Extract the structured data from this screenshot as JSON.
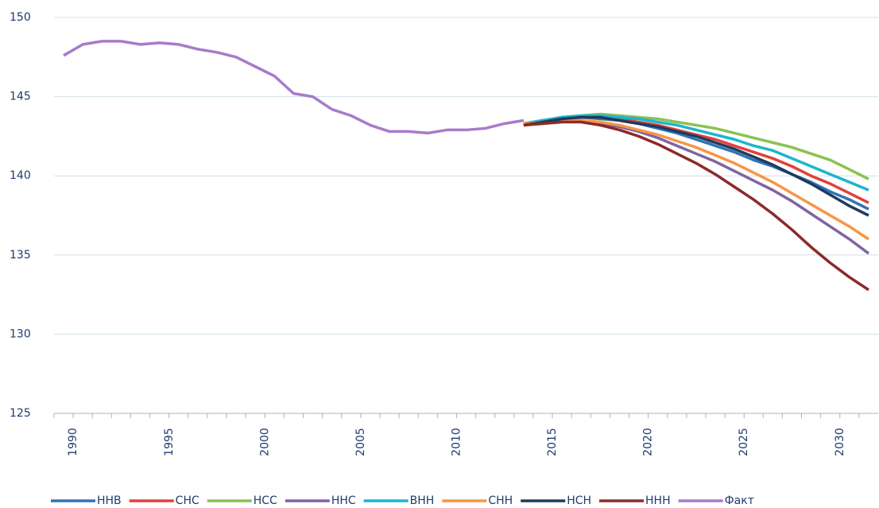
{
  "chart_data": {
    "type": "line",
    "x": [
      1989,
      1990,
      1991,
      1992,
      1993,
      1994,
      1995,
      1996,
      1997,
      1998,
      1999,
      2000,
      2001,
      2002,
      2003,
      2004,
      2005,
      2006,
      2007,
      2008,
      2009,
      2010,
      2011,
      2012,
      2013,
      2014,
      2015,
      2016,
      2017,
      2018,
      2019,
      2020,
      2021,
      2022,
      2023,
      2024,
      2025,
      2026,
      2027,
      2028,
      2029,
      2030,
      2031
    ],
    "xlim": [
      1988.5,
      2031.5
    ],
    "xticks": [
      1990,
      1995,
      2000,
      2005,
      2010,
      2015,
      2020,
      2025,
      2030
    ],
    "ylim": [
      125,
      150
    ],
    "yticks": [
      125,
      130,
      135,
      140,
      145,
      150
    ],
    "grid": true,
    "legend": "bottom",
    "series": [
      {
        "name": "ННВ",
        "color": "#2e75b6",
        "values": [
          null,
          null,
          null,
          null,
          null,
          null,
          null,
          null,
          null,
          null,
          null,
          null,
          null,
          null,
          null,
          null,
          null,
          null,
          null,
          null,
          null,
          null,
          null,
          null,
          143.3,
          143.5,
          143.6,
          143.7,
          143.6,
          143.5,
          143.3,
          143.0,
          142.7,
          142.3,
          141.9,
          141.5,
          141.0,
          140.6,
          140.1,
          139.6,
          139.0,
          138.5,
          137.9
        ]
      },
      {
        "name": "СНС",
        "color": "#e0413a",
        "values": [
          null,
          null,
          null,
          null,
          null,
          null,
          null,
          null,
          null,
          null,
          null,
          null,
          null,
          null,
          null,
          null,
          null,
          null,
          null,
          null,
          null,
          null,
          null,
          null,
          143.3,
          143.5,
          143.6,
          143.7,
          143.7,
          143.6,
          143.4,
          143.2,
          142.9,
          142.6,
          142.3,
          141.9,
          141.5,
          141.1,
          140.6,
          140.0,
          139.5,
          138.9,
          138.3
        ]
      },
      {
        "name": "НСС",
        "color": "#8cc152",
        "values": [
          null,
          null,
          null,
          null,
          null,
          null,
          null,
          null,
          null,
          null,
          null,
          null,
          null,
          null,
          null,
          null,
          null,
          null,
          null,
          null,
          null,
          null,
          null,
          null,
          143.3,
          143.5,
          143.7,
          143.8,
          143.9,
          143.8,
          143.7,
          143.6,
          143.4,
          143.2,
          143.0,
          142.7,
          142.4,
          142.1,
          141.8,
          141.4,
          141.0,
          140.4,
          139.8
        ]
      },
      {
        "name": "ННС",
        "color": "#8064a2",
        "values": [
          null,
          null,
          null,
          null,
          null,
          null,
          null,
          null,
          null,
          null,
          null,
          null,
          null,
          null,
          null,
          null,
          null,
          null,
          null,
          null,
          null,
          null,
          null,
          null,
          143.3,
          143.4,
          143.5,
          143.5,
          143.3,
          143.1,
          142.8,
          142.4,
          141.9,
          141.4,
          140.9,
          140.3,
          139.7,
          139.1,
          138.4,
          137.6,
          136.8,
          136.0,
          135.1
        ]
      },
      {
        "name": "ВНН",
        "color": "#1bb5d0",
        "values": [
          null,
          null,
          null,
          null,
          null,
          null,
          null,
          null,
          null,
          null,
          null,
          null,
          null,
          null,
          null,
          null,
          null,
          null,
          null,
          null,
          null,
          null,
          null,
          null,
          143.3,
          143.5,
          143.7,
          143.8,
          143.8,
          143.7,
          143.6,
          143.4,
          143.2,
          142.9,
          142.6,
          142.3,
          141.9,
          141.6,
          141.1,
          140.6,
          140.1,
          139.6,
          139.1
        ]
      },
      {
        "name": "СНН",
        "color": "#f79646",
        "values": [
          null,
          null,
          null,
          null,
          null,
          null,
          null,
          null,
          null,
          null,
          null,
          null,
          null,
          null,
          null,
          null,
          null,
          null,
          null,
          null,
          null,
          null,
          null,
          null,
          143.3,
          143.4,
          143.5,
          143.5,
          143.4,
          143.2,
          142.9,
          142.6,
          142.2,
          141.8,
          141.3,
          140.8,
          140.2,
          139.6,
          138.9,
          138.2,
          137.5,
          136.8,
          136.0
        ]
      },
      {
        "name": "НСН",
        "color": "#1f3b5c",
        "values": [
          null,
          null,
          null,
          null,
          null,
          null,
          null,
          null,
          null,
          null,
          null,
          null,
          null,
          null,
          null,
          null,
          null,
          null,
          null,
          null,
          null,
          null,
          null,
          null,
          143.2,
          143.4,
          143.6,
          143.7,
          143.7,
          143.5,
          143.3,
          143.1,
          142.8,
          142.5,
          142.1,
          141.7,
          141.2,
          140.7,
          140.1,
          139.5,
          138.8,
          138.1,
          137.5
        ]
      },
      {
        "name": "ННН",
        "color": "#8b2a2a",
        "values": [
          null,
          null,
          null,
          null,
          null,
          null,
          null,
          null,
          null,
          null,
          null,
          null,
          null,
          null,
          null,
          null,
          null,
          null,
          null,
          null,
          null,
          null,
          null,
          null,
          143.2,
          143.3,
          143.4,
          143.4,
          143.2,
          142.9,
          142.5,
          142.0,
          141.4,
          140.8,
          140.1,
          139.3,
          138.5,
          137.6,
          136.6,
          135.5,
          134.5,
          133.6,
          132.8
        ]
      },
      {
        "name": "Факт",
        "color": "#a77bca",
        "values": [
          147.6,
          148.3,
          148.5,
          148.5,
          148.3,
          148.4,
          148.3,
          148.0,
          147.8,
          147.5,
          146.9,
          146.3,
          145.2,
          145.0,
          144.2,
          143.8,
          143.2,
          142.8,
          142.8,
          142.7,
          142.9,
          142.9,
          143.0,
          143.3,
          143.5,
          null,
          null,
          null,
          null,
          null,
          null,
          null,
          null,
          null,
          null,
          null,
          null,
          null,
          null,
          null,
          null,
          null,
          null
        ]
      }
    ]
  }
}
